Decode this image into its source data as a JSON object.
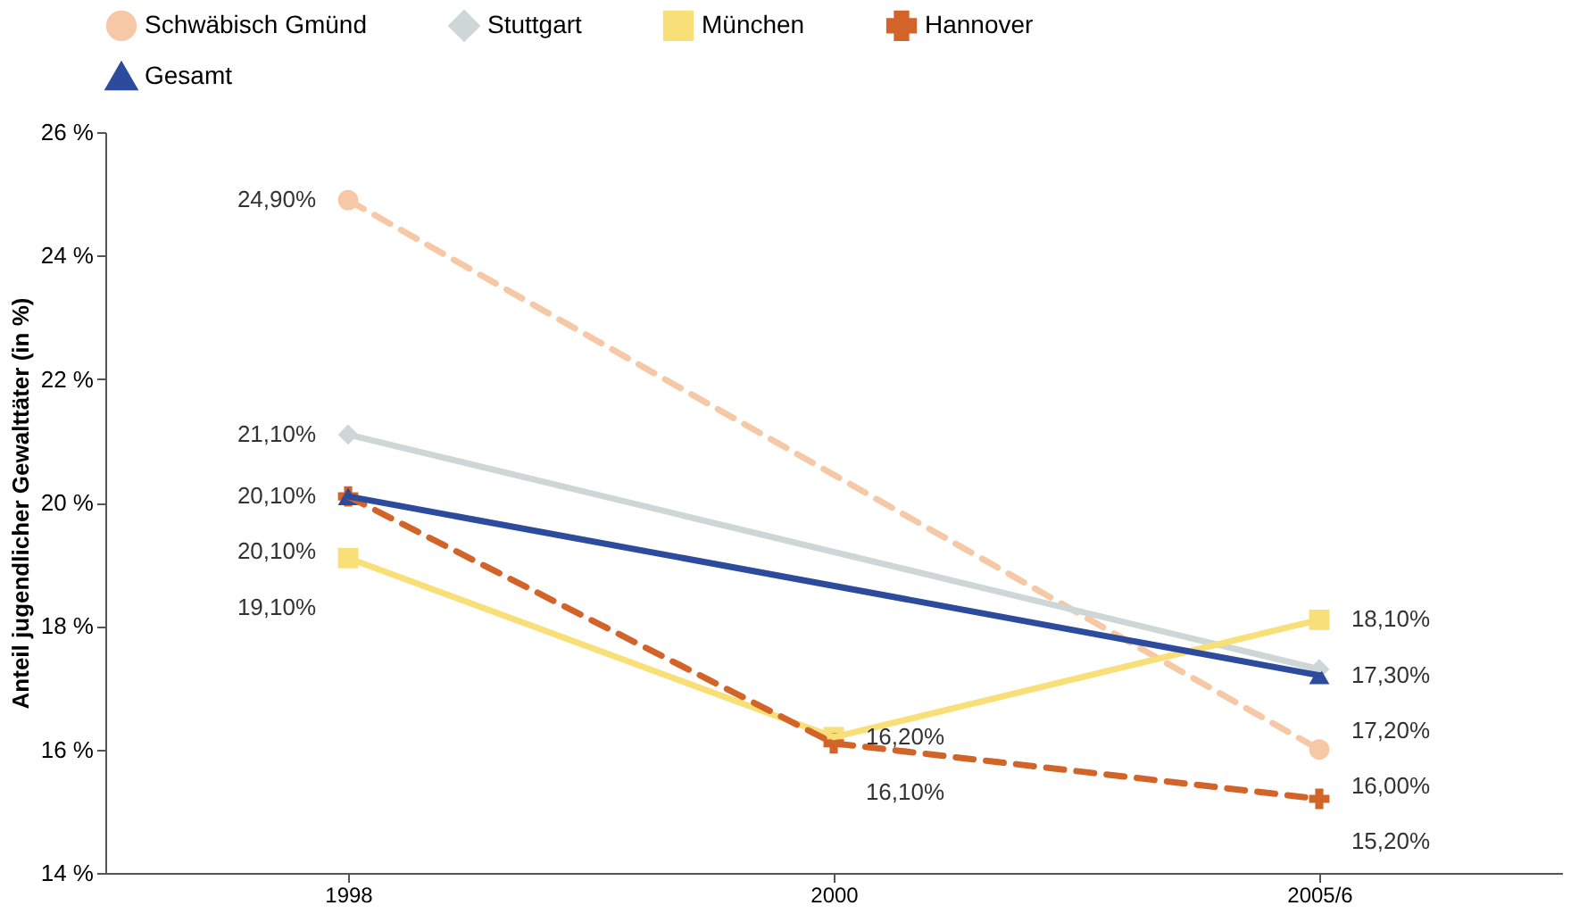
{
  "chart_data": {
    "type": "line",
    "ylabel": "Anteil jugendlicher Gewalttäter (in %)",
    "categories": [
      "1998",
      "2000",
      "2005/6"
    ],
    "ylim": [
      14,
      26
    ],
    "yticks": [
      {
        "value": 14,
        "label": "14 %"
      },
      {
        "value": 16,
        "label": "16 %"
      },
      {
        "value": 18,
        "label": "18 %"
      },
      {
        "value": 20,
        "label": "20 %"
      },
      {
        "value": 22,
        "label": "22 %"
      },
      {
        "value": 24,
        "label": "24 %"
      },
      {
        "value": 26,
        "label": "26 %"
      }
    ],
    "grid": false,
    "legend": "top",
    "series": [
      {
        "name": "Schwäbisch Gmünd",
        "color": "#f6c8a6",
        "marker": "circle",
        "line_style": "dashed",
        "values": [
          24.9,
          null,
          16.0
        ],
        "value_labels": [
          "24,90%",
          null,
          "16,00%"
        ]
      },
      {
        "name": "Stuttgart",
        "color": "#cfd6d8",
        "marker": "diamond",
        "line_style": "solid",
        "values": [
          21.1,
          null,
          17.3
        ],
        "value_labels": [
          "21,10%",
          null,
          "17,30%"
        ]
      },
      {
        "name": "München",
        "color": "#f8df78",
        "marker": "square",
        "line_style": "solid",
        "values": [
          19.1,
          16.2,
          18.1
        ],
        "value_labels": [
          "19,10%",
          "16,20%",
          "18,10%"
        ]
      },
      {
        "name": "Hannover",
        "color": "#d2642a",
        "marker": "cross",
        "line_style": "dashed",
        "values": [
          20.1,
          16.1,
          15.2
        ],
        "value_labels": [
          "20,10%",
          "16,10%",
          "15,20%"
        ]
      },
      {
        "name": "Gesamt",
        "color": "#2d4b9c",
        "marker": "triangle",
        "line_style": "solid",
        "values": [
          20.1,
          null,
          17.2
        ],
        "value_labels": [
          "20,10%",
          null,
          "17,20%"
        ]
      }
    ]
  }
}
